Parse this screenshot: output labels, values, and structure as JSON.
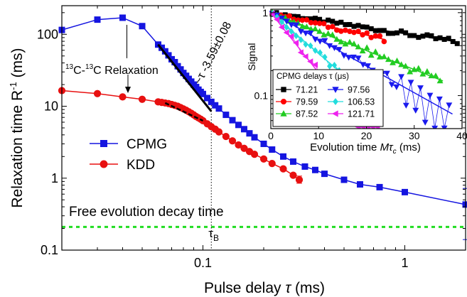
{
  "chart_data": [
    {
      "type": "line",
      "xscale": "log",
      "yscale": "log",
      "xlim": [
        0.02,
        2
      ],
      "ylim": [
        0.1,
        250
      ],
      "xticks": [
        0.1,
        1
      ],
      "xtick_labels": [
        "0.1",
        "1"
      ],
      "yticks": [
        0.1,
        1,
        10,
        100
      ],
      "ytick_labels": [
        "0.1",
        "1",
        "10",
        "100"
      ],
      "xlabel_prefix": "Pulse delay ",
      "xlabel_symbol": "τ",
      "xlabel_suffix": " (ms)",
      "ylabel_prefix": "Relaxation time R",
      "ylabel_sup": "-1",
      "ylabel_suffix": " (ms)",
      "grid": false,
      "legend_position": "center-left",
      "series": [
        {
          "name": "CPMG",
          "color": "#1515e0",
          "marker": "square",
          "x": [
            0.02,
            0.03,
            0.04,
            0.05,
            0.06,
            0.0625,
            0.065,
            0.0675,
            0.07,
            0.0725,
            0.075,
            0.0775,
            0.08,
            0.0825,
            0.085,
            0.0875,
            0.09,
            0.0925,
            0.095,
            0.0975,
            0.1,
            0.105,
            0.11,
            0.115,
            0.12,
            0.13,
            0.14,
            0.15,
            0.16,
            0.17,
            0.18,
            0.2,
            0.22,
            0.25,
            0.28,
            0.32,
            0.36,
            0.4,
            0.5,
            0.6,
            0.75,
            1.0,
            2.0
          ],
          "y": [
            115,
            160,
            170,
            130,
            72,
            65,
            58,
            51,
            45,
            41,
            36,
            32.5,
            29,
            26.5,
            24,
            22,
            20,
            18.5,
            17,
            15.8,
            14.8,
            13,
            11.5,
            10.3,
            9.3,
            7.6,
            6.4,
            5.5,
            4.8,
            4.2,
            3.7,
            3.0,
            2.5,
            2.0,
            1.7,
            1.45,
            1.3,
            1.15,
            0.95,
            0.82,
            0.75,
            0.64,
            0.43
          ]
        },
        {
          "name": "KDD",
          "color": "#e81010",
          "marker": "circle",
          "x": [
            0.02,
            0.03,
            0.04,
            0.05,
            0.06,
            0.0625,
            0.065,
            0.0675,
            0.07,
            0.0725,
            0.075,
            0.0775,
            0.08,
            0.0825,
            0.085,
            0.0875,
            0.09,
            0.0925,
            0.095,
            0.0975,
            0.1,
            0.105,
            0.11,
            0.115,
            0.12,
            0.13,
            0.14,
            0.15,
            0.16,
            0.17,
            0.18,
            0.2,
            0.22,
            0.25,
            0.28,
            0.3
          ],
          "y": [
            16.5,
            15,
            13.5,
            12.5,
            11.5,
            11.3,
            11.1,
            10.9,
            10.6,
            10.3,
            10,
            9.6,
            9.2,
            8.8,
            8.4,
            8,
            7.6,
            7.2,
            6.9,
            6.6,
            6.3,
            5.7,
            5.2,
            4.8,
            4.4,
            3.8,
            3.3,
            2.9,
            2.6,
            2.35,
            2.15,
            1.85,
            1.6,
            1.35,
            1.1,
            0.95
          ]
        }
      ],
      "fit_line": {
        "x": [
          0.06,
          0.11
        ],
        "y": [
          72,
          8.5
        ],
        "label": "~τ -3.59±0.08"
      },
      "reference_line": {
        "y": 0.21,
        "label": "Free evolution decay time",
        "color": "#22dd22"
      },
      "vertical_marker": {
        "x": 0.11,
        "label_main": "τ",
        "label_sub": "B"
      },
      "annotation": {
        "text_sup1": "13",
        "text_mid": "C-",
        "text_sup2": "13",
        "text_end": "C Relaxation",
        "target": [
          0.04,
          170
        ]
      }
    },
    {
      "type": "scatter",
      "xscale": "linear",
      "yscale": "log",
      "xlim": [
        0,
        40
      ],
      "ylim": [
        0.04,
        1.1
      ],
      "xticks": [
        0,
        10,
        20,
        30,
        40
      ],
      "xtick_labels": [
        "0",
        "10",
        "20",
        "30",
        "40"
      ],
      "yticks": [
        0.1,
        1
      ],
      "ytick_labels": [
        "0.1",
        "1"
      ],
      "ylabel": "Signal",
      "xlabel_prefix": "Evolution time ",
      "xlabel_symbol": "Mτ",
      "xlabel_sub": "c",
      "xlabel_suffix": " (ms)",
      "legend_title": "CPMG delays τ (μs)",
      "series": [
        {
          "name": "71.21",
          "color": "#000000",
          "marker": "square",
          "T": 48,
          "xmax": 39
        },
        {
          "name": "79.59",
          "color": "#ff0000",
          "marker": "circle",
          "T": 32,
          "xmax": 24
        },
        {
          "name": "87.52",
          "color": "#22cc22",
          "marker": "triangle-up",
          "T": 19,
          "xmax": 36
        },
        {
          "name": "97.56",
          "color": "#1a1aee",
          "marker": "triangle-down",
          "T": 13.5,
          "xmax": 38
        },
        {
          "name": "106.53",
          "color": "#22dddd",
          "marker": "diamond",
          "T": 8.8,
          "xmax": 22
        },
        {
          "name": "121.71",
          "color": "#ee22ee",
          "marker": "triangle-left",
          "T": 6.0,
          "xmax": 23
        }
      ]
    }
  ]
}
